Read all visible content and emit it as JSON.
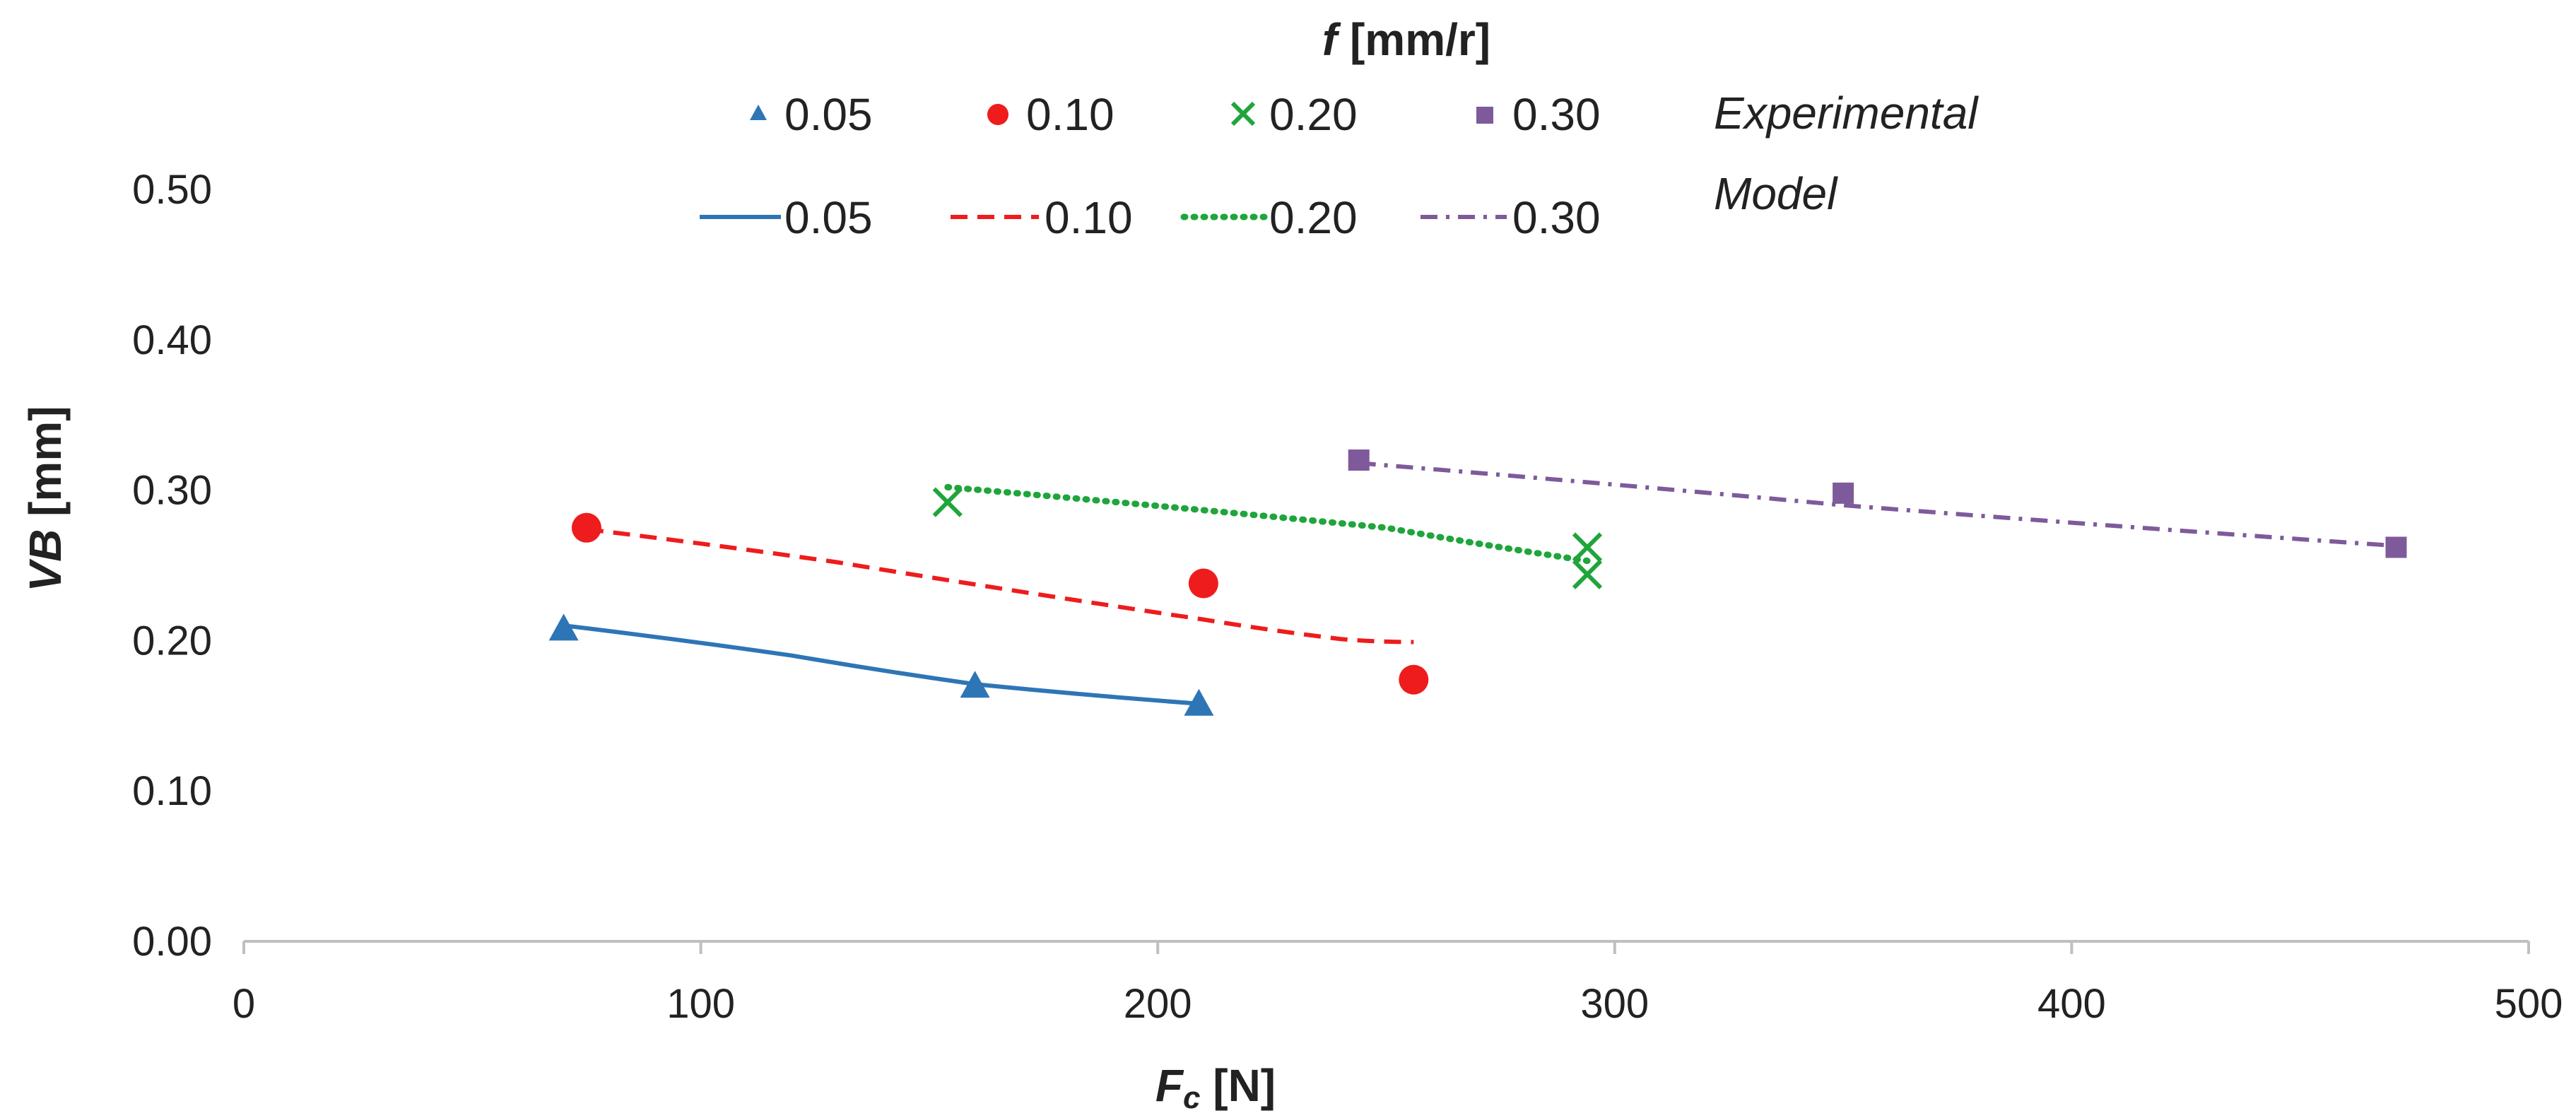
{
  "chart_data": {
    "type": "scatter",
    "title": "",
    "legend_title": {
      "italic": "f",
      "rest": " [mm/r]"
    },
    "xlabel": {
      "italic": "F",
      "sub": "c",
      "rest": " [N]"
    },
    "ylabel": {
      "italic": "VB",
      "rest": " [mm]"
    },
    "xlim": [
      0,
      500
    ],
    "ylim": [
      0,
      0.5
    ],
    "x_ticks": [
      0,
      100,
      200,
      300,
      400,
      500
    ],
    "x_tick_labels": [
      "0",
      "100",
      "200",
      "300",
      "400",
      "500"
    ],
    "y_ticks": [
      0,
      0.1,
      0.2,
      0.3,
      0.4,
      0.5
    ],
    "y_tick_labels": [
      "0.00",
      "0.10",
      "0.20",
      "0.30",
      "0.40",
      "0.50"
    ],
    "legend_group_labels": [
      "Experimental",
      "Model"
    ],
    "experimental": [
      {
        "name": "0.05",
        "marker": "triangle",
        "color": "#2E75B6",
        "points": [
          [
            70,
            0.208
          ],
          [
            160,
            0.17
          ],
          [
            209,
            0.158
          ]
        ]
      },
      {
        "name": "0.10",
        "marker": "circle",
        "color": "#EE1C1C",
        "points": [
          [
            75,
            0.275
          ],
          [
            210,
            0.238
          ],
          [
            256,
            0.174
          ]
        ]
      },
      {
        "name": "0.20",
        "marker": "cross",
        "color": "#1FA53B",
        "points": [
          [
            154,
            0.292
          ],
          [
            294,
            0.262
          ],
          [
            294,
            0.244
          ]
        ]
      },
      {
        "name": "0.30",
        "marker": "square",
        "color": "#7E5A9B",
        "points": [
          [
            244,
            0.32
          ],
          [
            350,
            0.298
          ],
          [
            471,
            0.262
          ]
        ]
      }
    ],
    "model": [
      {
        "name": "0.05",
        "style": "solid",
        "color": "#2E75B6",
        "points": [
          [
            70,
            0.21
          ],
          [
            120,
            0.19
          ],
          [
            160,
            0.171
          ],
          [
            209,
            0.158
          ]
        ]
      },
      {
        "name": "0.10",
        "style": "dashed",
        "color": "#EE1C1C",
        "points": [
          [
            75,
            0.274
          ],
          [
            130,
            0.252
          ],
          [
            210,
            0.214
          ],
          [
            240,
            0.201
          ],
          [
            256,
            0.199
          ]
        ]
      },
      {
        "name": "0.20",
        "style": "dotted",
        "color": "#1FA53B",
        "points": [
          [
            154,
            0.302
          ],
          [
            250,
            0.275
          ],
          [
            294,
            0.253
          ]
        ]
      },
      {
        "name": "0.30",
        "style": "dashdot",
        "color": "#7E5A9B",
        "points": [
          [
            244,
            0.318
          ],
          [
            350,
            0.29
          ],
          [
            471,
            0.263
          ]
        ]
      }
    ]
  }
}
